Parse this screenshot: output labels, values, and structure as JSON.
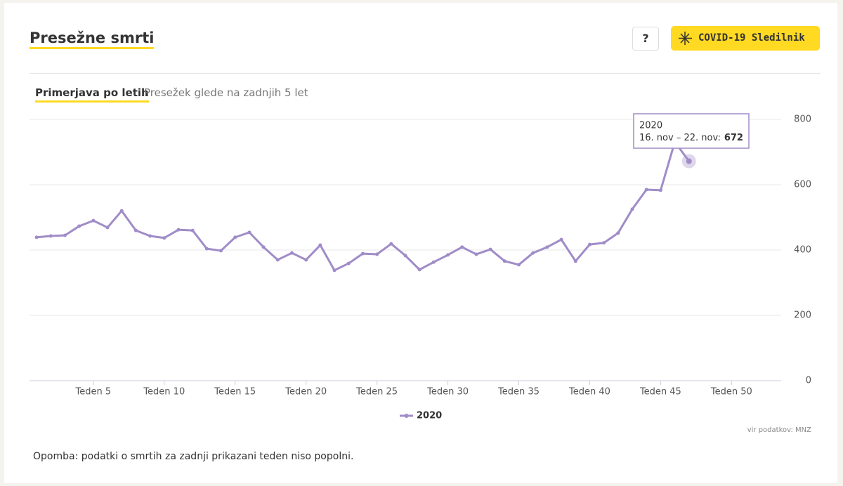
{
  "header": {
    "title": "Presežne smrti",
    "help": "?",
    "brand": "COVID-19 Sledilnik"
  },
  "tabs": [
    "Primerjava po letih",
    "Presežek glede na zadnjih 5 let"
  ],
  "chart_data": {
    "type": "line",
    "x": [
      1,
      2,
      3,
      4,
      5,
      6,
      7,
      8,
      9,
      10,
      11,
      12,
      13,
      14,
      15,
      16,
      17,
      18,
      19,
      20,
      21,
      22,
      23,
      24,
      25,
      26,
      27,
      28,
      29,
      30,
      31,
      32,
      33,
      34,
      35,
      36,
      37,
      38,
      39,
      40,
      41,
      42,
      43,
      44,
      45,
      46,
      47
    ],
    "series": [
      {
        "name": "2020",
        "color": "#a08cc8",
        "values": [
          439,
          443,
          445,
          473,
          490,
          469,
          520,
          460,
          443,
          437,
          462,
          460,
          404,
          398,
          439,
          454,
          409,
          370,
          391,
          370,
          415,
          338,
          359,
          389,
          387,
          419,
          383,
          340,
          363,
          385,
          409,
          387,
          402,
          366,
          355,
          391,
          409,
          432,
          366,
          417,
          422,
          452,
          525,
          585,
          583,
          731,
          672
        ]
      }
    ],
    "xlim": [
      0.5,
      53.5
    ],
    "xticks": [
      {
        "value": 5,
        "label": "Teden 5"
      },
      {
        "value": 10,
        "label": "Teden 10"
      },
      {
        "value": 15,
        "label": "Teden 15"
      },
      {
        "value": 20,
        "label": "Teden 20"
      },
      {
        "value": 25,
        "label": "Teden 25"
      },
      {
        "value": 30,
        "label": "Teden 30"
      },
      {
        "value": 35,
        "label": "Teden 35"
      },
      {
        "value": 40,
        "label": "Teden 40"
      },
      {
        "value": 45,
        "label": "Teden 45"
      },
      {
        "value": 50,
        "label": "Teden 50"
      }
    ],
    "ylim": [
      0,
      800
    ],
    "yticks": [
      0,
      200,
      400,
      600,
      800
    ],
    "grid": true,
    "tooltip": {
      "label": "16. nov – 22. nov:"
    },
    "source": "vir podatkov: MNZ"
  },
  "note": "Opomba: podatki o smrtih za zadnji prikazani teden niso popolni."
}
